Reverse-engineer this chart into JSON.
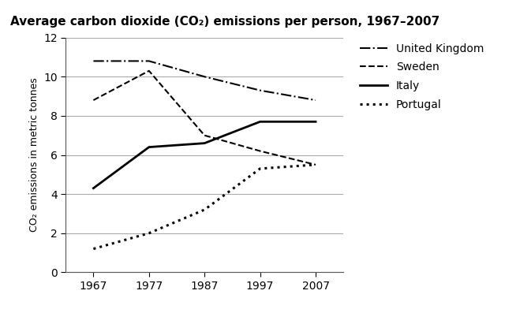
{
  "title": "Average carbon dioxide (CO₂) emissions per person, 1967–2007",
  "ylabel": "CO₂ emissions in metric tonnes",
  "years": [
    1967,
    1977,
    1987,
    1997,
    2007
  ],
  "series": {
    "United Kingdom": [
      10.8,
      10.8,
      10.0,
      9.3,
      8.8
    ],
    "Sweden": [
      8.8,
      10.3,
      7.0,
      6.2,
      5.5
    ],
    "Italy": [
      4.3,
      6.4,
      6.6,
      7.7,
      7.7
    ],
    "Portugal": [
      1.2,
      2.0,
      3.2,
      5.3,
      5.5
    ]
  },
  "line_styles": {
    "United Kingdom": "-.",
    "Sweden": "--",
    "Italy": "-",
    "Portugal": ":"
  },
  "line_widths": {
    "United Kingdom": 1.5,
    "Sweden": 1.5,
    "Italy": 2.0,
    "Portugal": 2.2
  },
  "colors": {
    "United Kingdom": "#000000",
    "Sweden": "#000000",
    "Italy": "#000000",
    "Portugal": "#000000"
  },
  "ylim": [
    0,
    12
  ],
  "yticks": [
    0,
    2,
    4,
    6,
    8,
    10,
    12
  ],
  "xticks": [
    1967,
    1977,
    1987,
    1997,
    2007
  ],
  "background_color": "#ffffff",
  "grid_color": "#aaaaaa",
  "title_fontsize": 11,
  "label_fontsize": 9,
  "tick_fontsize": 10,
  "legend_fontsize": 10
}
